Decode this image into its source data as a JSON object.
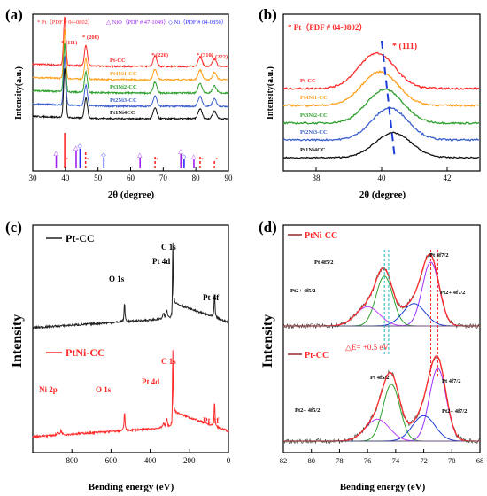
{
  "chart_data": [
    {
      "panel": "(a)",
      "type": "line",
      "xlabel": "2θ (degree)",
      "ylabel": "Intensity(a.u.)",
      "xlim": [
        30,
        90
      ],
      "xticks": [
        "30",
        "40",
        "50",
        "60",
        "70",
        "80",
        "90"
      ],
      "header": {
        "pt": "* Pt（PDF # 04-0802）",
        "nio": "△ NiO（PDF # 47-1049）",
        "ni": "◇ Ni（PDF # 04-0850）"
      },
      "peak_labels": [
        {
          "label": "(111)",
          "x": 39.8
        },
        {
          "label": "(200)",
          "x": 46.3
        },
        {
          "label": "(220)",
          "x": 67.5
        },
        {
          "label": "(310)",
          "x": 81.3
        },
        {
          "label": "(222)",
          "x": 85.7
        }
      ],
      "series": [
        {
          "name": "Pt-CC",
          "color": "#ff2a2a",
          "offset": 4
        },
        {
          "name": "Pt4Ni1-CC",
          "color": "#ff9f1a",
          "offset": 3
        },
        {
          "name": "Pt3Ni2-CC",
          "color": "#2ca02c",
          "offset": 2
        },
        {
          "name": "Pt2Ni3-CC",
          "color": "#3a5fcd",
          "offset": 1
        },
        {
          "name": "Pt1Ni4CC",
          "color": "#111111",
          "offset": 0
        }
      ],
      "reference_pt": [
        39.8,
        46.2,
        67.5,
        81.3,
        85.7
      ],
      "reference_nio": [
        37.2,
        43.3,
        62.9,
        75.4,
        79.4
      ],
      "reference_ni": [
        44.5,
        51.8,
        76.4
      ]
    },
    {
      "panel": "(b)",
      "type": "line",
      "xlabel": "2θ (degree)",
      "ylabel": "Intensity(a.u.)",
      "xlim": [
        37,
        43
      ],
      "xticks": [
        "38",
        "40",
        "42"
      ],
      "header": "* Pt（PDF # 04-0802）",
      "peak_label": "* (111)",
      "series": [
        {
          "name": "Pt-CC",
          "color": "#ff2a2a",
          "peak": 39.85
        },
        {
          "name": "Pt4Ni1-CC",
          "color": "#ff9f1a",
          "peak": 39.95
        },
        {
          "name": "Pt3Ni2-CC",
          "color": "#2ca02c",
          "peak": 40.1
        },
        {
          "name": "Pt2Ni3-CC",
          "color": "#3a5fcd",
          "peak": 40.25
        },
        {
          "name": "Pt1Ni4CC",
          "color": "#111111",
          "peak": 40.35
        }
      ]
    },
    {
      "panel": "(c)",
      "type": "line",
      "xlabel": "Bending energy (eV)",
      "ylabel": "Intensity",
      "xlim": [
        1000,
        0
      ],
      "xticks": [
        "800",
        "600",
        "400",
        "200",
        "0"
      ],
      "series": [
        {
          "name": "Pt-CC",
          "color": "#222222",
          "labels": [
            "O 1s",
            "Pt 4d",
            "C 1s",
            "Pt 4f"
          ]
        },
        {
          "name": "PtNi-CC",
          "color": "#ff2a2a",
          "labels": [
            "Ni 2p",
            "O 1s",
            "Pt 4d",
            "C 1s",
            "Pt 4f"
          ]
        }
      ],
      "peaks": {
        "C 1s": 284.8,
        "O 1s": 531,
        "Pt 4d": 315,
        "Pt 4f": 71,
        "Ni 2p": 855
      }
    },
    {
      "panel": "(d)",
      "type": "line",
      "xlabel": "Bending energy (eV)",
      "ylabel": "Intensity",
      "xlim": [
        82,
        68
      ],
      "xticks": [
        "82",
        "80",
        "78",
        "76",
        "74",
        "72",
        "70",
        "68"
      ],
      "top": {
        "name": "PtNi-CC",
        "annotation": "△E= +0.5 eV",
        "labels": {
          "pt4f52": "Pt 4f5/2",
          "pt4f72": "Pt 4f7/2",
          "pt2_4f52": "Pt2+ 4f5/2",
          "pt2_4f72": "Pt2+ 4f7/2"
        },
        "peaks": {
          "pt4f72": 71.5,
          "pt4f52": 74.8,
          "pt2_4f72": 72.7,
          "pt2_4f52": 76.0
        }
      },
      "bottom": {
        "name": "Pt-CC",
        "labels": {
          "pt4f52": "Pt 4f5/2",
          "pt4f72": "Pt 4f7/2",
          "pt2_4f52": "Pt2+ 4f5/2",
          "pt2_4f72": "Pt2+ 4f7/2"
        },
        "peaks": {
          "pt4f72": 71.0,
          "pt4f52": 74.3,
          "pt2_4f72": 72.0,
          "pt2_4f52": 75.3
        }
      },
      "guide_lines": {
        "teal": [
          74.8,
          74.5
        ],
        "red": [
          71.5,
          71.0
        ]
      }
    }
  ]
}
